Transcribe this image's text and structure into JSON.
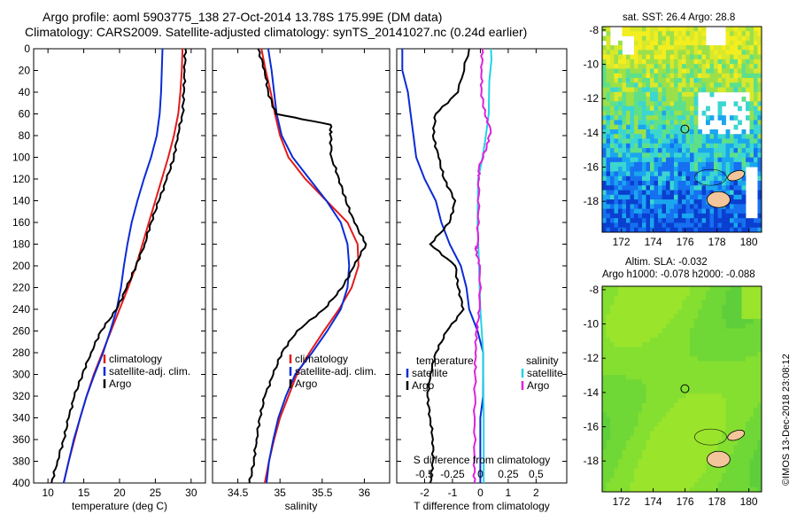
{
  "header": {
    "line1": "Argo profile: aoml 5903775_138 27-Oct-2014 13.78S 175.99E (DM data)",
    "line2": "Climatology: CARS2009. Satellite-adjusted climatology: synTS_20141027.nc (0.24d earlier)"
  },
  "colors": {
    "climatology": "#e31a1c",
    "satellite": "#0a2bd6",
    "argo": "#000000",
    "sat_s": "#22d3e6",
    "clim_s": "#dd22dd"
  },
  "chart_data": [
    {
      "type": "line",
      "id": "temperature",
      "xlabel": "temperature (deg C)",
      "ylabel": "",
      "xlim": [
        8,
        32
      ],
      "ylim": [
        400,
        0
      ],
      "xticks": [
        10,
        15,
        20,
        25,
        30
      ],
      "yticks": [
        0,
        20,
        40,
        60,
        80,
        100,
        120,
        140,
        160,
        180,
        200,
        220,
        240,
        260,
        280,
        300,
        320,
        340,
        360,
        380,
        400
      ],
      "legend": [
        "climatology",
        "satellite-adj. clim.",
        "Argo"
      ],
      "legend_position": "lower-right",
      "series": [
        {
          "name": "climatology",
          "color": "#e31a1c",
          "points": [
            [
              28.8,
              0
            ],
            [
              28.7,
              20
            ],
            [
              28.5,
              40
            ],
            [
              28.2,
              60
            ],
            [
              27.6,
              80
            ],
            [
              26.8,
              100
            ],
            [
              25.9,
              120
            ],
            [
              25.0,
              140
            ],
            [
              24.1,
              160
            ],
            [
              23.2,
              180
            ],
            [
              22.3,
              200
            ],
            [
              21.2,
              220
            ],
            [
              20.0,
              240
            ],
            [
              18.8,
              260
            ],
            [
              17.6,
              280
            ],
            [
              16.4,
              300
            ],
            [
              15.4,
              320
            ],
            [
              14.5,
              340
            ],
            [
              13.7,
              360
            ],
            [
              12.9,
              380
            ],
            [
              12.2,
              400
            ]
          ]
        },
        {
          "name": "satellite-adj. clim.",
          "color": "#0a2bd6",
          "points": [
            [
              26.0,
              0
            ],
            [
              25.9,
              20
            ],
            [
              25.8,
              40
            ],
            [
              25.6,
              60
            ],
            [
              25.2,
              80
            ],
            [
              24.4,
              100
            ],
            [
              23.4,
              120
            ],
            [
              22.5,
              140
            ],
            [
              21.7,
              160
            ],
            [
              21.1,
              180
            ],
            [
              20.6,
              200
            ],
            [
              20.2,
              220
            ],
            [
              19.6,
              240
            ],
            [
              18.7,
              260
            ],
            [
              17.7,
              280
            ],
            [
              16.5,
              300
            ],
            [
              15.4,
              320
            ],
            [
              14.5,
              340
            ],
            [
              13.6,
              360
            ],
            [
              12.9,
              380
            ],
            [
              12.2,
              400
            ]
          ]
        },
        {
          "name": "Argo",
          "color": "#000000",
          "points": [
            [
              29.2,
              0
            ],
            [
              29.1,
              20
            ],
            [
              29.0,
              40
            ],
            [
              28.8,
              60
            ],
            [
              28.1,
              80
            ],
            [
              27.6,
              100
            ],
            [
              26.6,
              120
            ],
            [
              25.5,
              140
            ],
            [
              24.4,
              160
            ],
            [
              23.5,
              180
            ],
            [
              22.3,
              200
            ],
            [
              21.0,
              220
            ],
            [
              19.6,
              240
            ],
            [
              17.4,
              260
            ],
            [
              16.0,
              280
            ],
            [
              14.8,
              300
            ],
            [
              13.7,
              320
            ],
            [
              12.9,
              340
            ],
            [
              12.2,
              360
            ],
            [
              11.3,
              380
            ],
            [
              10.5,
              400
            ]
          ]
        }
      ]
    },
    {
      "type": "line",
      "id": "salinity",
      "xlabel": "salinity",
      "xlim": [
        34.2,
        36.3
      ],
      "ylim": [
        400,
        0
      ],
      "xticks": [
        34.5,
        35,
        35.5,
        36
      ],
      "legend": [
        "climatology",
        "satellite-adj. clim.",
        "Argo"
      ],
      "legend_position": "lower-right",
      "series": [
        {
          "name": "climatology",
          "color": "#e31a1c",
          "points": [
            [
              34.78,
              0
            ],
            [
              34.83,
              20
            ],
            [
              34.89,
              40
            ],
            [
              34.94,
              60
            ],
            [
              35.0,
              80
            ],
            [
              35.1,
              100
            ],
            [
              35.3,
              120
            ],
            [
              35.55,
              140
            ],
            [
              35.8,
              160
            ],
            [
              35.92,
              180
            ],
            [
              35.93,
              200
            ],
            [
              35.85,
              220
            ],
            [
              35.7,
              240
            ],
            [
              35.52,
              260
            ],
            [
              35.35,
              280
            ],
            [
              35.2,
              300
            ],
            [
              35.1,
              320
            ],
            [
              35.0,
              340
            ],
            [
              34.93,
              360
            ],
            [
              34.87,
              380
            ],
            [
              34.82,
              400
            ]
          ]
        },
        {
          "name": "satellite-adj. clim.",
          "color": "#0a2bd6",
          "points": [
            [
              34.86,
              0
            ],
            [
              34.9,
              20
            ],
            [
              34.93,
              40
            ],
            [
              34.96,
              60
            ],
            [
              35.02,
              80
            ],
            [
              35.15,
              100
            ],
            [
              35.35,
              120
            ],
            [
              35.55,
              140
            ],
            [
              35.72,
              160
            ],
            [
              35.8,
              180
            ],
            [
              35.82,
              200
            ],
            [
              35.8,
              220
            ],
            [
              35.72,
              240
            ],
            [
              35.56,
              260
            ],
            [
              35.38,
              280
            ],
            [
              35.18,
              300
            ],
            [
              35.07,
              320
            ],
            [
              34.98,
              340
            ],
            [
              34.92,
              360
            ],
            [
              34.87,
              380
            ],
            [
              34.84,
              400
            ]
          ]
        },
        {
          "name": "Argo",
          "color": "#000000",
          "points": [
            [
              34.74,
              0
            ],
            [
              34.82,
              20
            ],
            [
              34.86,
              40
            ],
            [
              34.95,
              60
            ],
            [
              35.6,
              70
            ],
            [
              35.6,
              80
            ],
            [
              35.61,
              100
            ],
            [
              35.7,
              120
            ],
            [
              35.78,
              140
            ],
            [
              35.88,
              160
            ],
            [
              36.02,
              180
            ],
            [
              35.88,
              200
            ],
            [
              35.74,
              220
            ],
            [
              35.52,
              240
            ],
            [
              35.2,
              260
            ],
            [
              35.02,
              280
            ],
            [
              34.92,
              300
            ],
            [
              34.82,
              320
            ],
            [
              34.76,
              340
            ],
            [
              34.72,
              360
            ],
            [
              34.69,
              380
            ],
            [
              34.64,
              400
            ]
          ]
        }
      ]
    },
    {
      "type": "line",
      "id": "difference",
      "xlabel": "T difference from climatology",
      "secondary_xlabel": "S difference from climatology",
      "xlim": [
        -3,
        3.1
      ],
      "ylim": [
        400,
        0
      ],
      "xticks": [
        -2,
        -1,
        0,
        1,
        2
      ],
      "secondary_xticks": [
        -0.5,
        -0.25,
        0,
        0.25,
        0.5
      ],
      "legend_temperature_title": "temperature",
      "legend_salinity_title": "salinity",
      "legend": [
        "satellite",
        "Argo",
        "satellite",
        "Argo"
      ],
      "series": [
        {
          "name": "temperature satellite",
          "color": "#0a2bd6",
          "points": [
            [
              -2.8,
              0
            ],
            [
              -2.8,
              20
            ],
            [
              -2.6,
              40
            ],
            [
              -2.5,
              60
            ],
            [
              -2.4,
              80
            ],
            [
              -2.3,
              100
            ],
            [
              -2.0,
              120
            ],
            [
              -1.6,
              140
            ],
            [
              -1.4,
              160
            ],
            [
              -1.1,
              180
            ],
            [
              -0.7,
              200
            ],
            [
              -0.5,
              220
            ],
            [
              -0.4,
              240
            ],
            [
              -0.1,
              260
            ],
            [
              0.1,
              280
            ],
            [
              0.1,
              300
            ],
            [
              0.1,
              320
            ],
            [
              0.0,
              340
            ],
            [
              0.0,
              360
            ],
            [
              0.0,
              380
            ],
            [
              0.0,
              400
            ]
          ]
        },
        {
          "name": "temperature Argo",
          "color": "#000000",
          "points": [
            [
              -0.4,
              0
            ],
            [
              -0.8,
              40
            ],
            [
              -1.6,
              60
            ],
            [
              -1.7,
              80
            ],
            [
              -1.5,
              100
            ],
            [
              -1.3,
              120
            ],
            [
              -0.9,
              140
            ],
            [
              -1.1,
              160
            ],
            [
              -1.8,
              180
            ],
            [
              -0.9,
              200
            ],
            [
              -0.8,
              220
            ],
            [
              -0.6,
              240
            ],
            [
              -1.2,
              260
            ],
            [
              -1.6,
              280
            ],
            [
              -1.8,
              300
            ],
            [
              -1.9,
              320
            ],
            [
              -1.8,
              340
            ],
            [
              -1.7,
              360
            ],
            [
              -1.7,
              380
            ],
            [
              -1.8,
              400
            ]
          ]
        },
        {
          "name": "salinity satellite",
          "color": "#22d3e6",
          "points": [
            [
              0.38,
              0
            ],
            [
              0.4,
              10
            ],
            [
              0.32,
              30
            ],
            [
              0.3,
              60
            ],
            [
              0.2,
              80
            ],
            [
              0.08,
              100
            ],
            [
              -0.08,
              120
            ],
            [
              -0.1,
              160
            ],
            [
              -0.05,
              200
            ],
            [
              0.0,
              240
            ],
            [
              0.05,
              260
            ],
            [
              0.1,
              280
            ],
            [
              0.1,
              300
            ],
            [
              0.12,
              340
            ],
            [
              0.12,
              380
            ],
            [
              0.12,
              400
            ]
          ]
        },
        {
          "name": "salinity Argo",
          "color": "#dd22dd",
          "points": [
            [
              0.07,
              0
            ],
            [
              0.05,
              20
            ],
            [
              0.04,
              40
            ],
            [
              0.16,
              60
            ],
            [
              0.37,
              75
            ],
            [
              0.23,
              90
            ],
            [
              -0.05,
              110
            ],
            [
              -0.05,
              120
            ],
            [
              -0.07,
              150
            ],
            [
              -0.1,
              180
            ],
            [
              -0.17,
              185
            ],
            [
              -0.01,
              200
            ],
            [
              -0.02,
              240
            ],
            [
              -0.14,
              260
            ],
            [
              -0.18,
              280
            ],
            [
              -0.19,
              300
            ],
            [
              -0.2,
              340
            ],
            [
              -0.21,
              380
            ],
            [
              -0.22,
              400
            ]
          ]
        }
      ]
    },
    {
      "type": "heatmap",
      "id": "sst_map",
      "title": "sat. SST: 26.4 Argo: 28.8",
      "xlim": [
        170.8,
        180.8
      ],
      "ylim": [
        -19.8,
        -7.8
      ],
      "xticks": [
        172,
        174,
        176,
        178,
        180
      ],
      "yticks": [
        -8,
        -10,
        -12,
        -14,
        -16,
        -18
      ],
      "marker": {
        "lon": 175.99,
        "lat": -13.78
      }
    },
    {
      "type": "heatmap",
      "id": "sla_map",
      "title": "Altim. SLA: -0.032",
      "subtitle": "Argo h1000: -0.078 h2000: -0.088",
      "xlim": [
        170.8,
        180.8
      ],
      "ylim": [
        -19.8,
        -7.8
      ],
      "xticks": [
        172,
        174,
        176,
        178,
        180
      ],
      "yticks": [
        -8,
        -10,
        -12,
        -14,
        -16,
        -18
      ],
      "marker": {
        "lon": 175.99,
        "lat": -13.78
      }
    }
  ],
  "footer": {
    "watermark": "©IMOS 13-Dec-2018 23:08:12"
  }
}
